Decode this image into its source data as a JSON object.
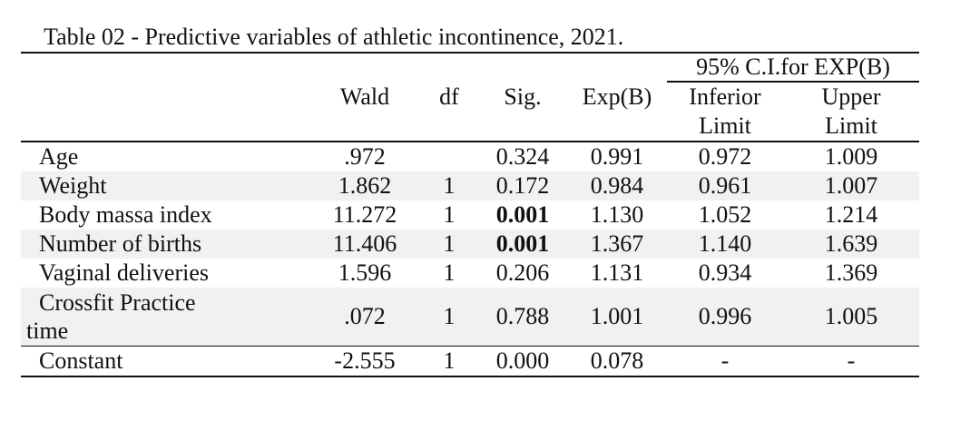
{
  "caption": "Table 02 - Predictive variables of athletic incontinence, 2021.",
  "header": {
    "ci_group": "95% C.I.for EXP(B)",
    "wald": "Wald",
    "df": "df",
    "sig": "Sig.",
    "exp": "Exp(B)",
    "inferior_line1": "Inferior",
    "inferior_line2": "Limit",
    "upper_line1": "Upper",
    "upper_line2": "Limit"
  },
  "rows": [
    {
      "label": "Age",
      "wald": ".972",
      "df": "",
      "sig": "0.324",
      "exp": "0.991",
      "inferior": "0.972",
      "upper": "1.009"
    },
    {
      "label": "Weight",
      "wald": "1.862",
      "df": "1",
      "sig": "0.172",
      "exp": "0.984",
      "inferior": "0.961",
      "upper": "1.007"
    },
    {
      "label": "Body massa index",
      "wald": "11.272",
      "df": "1",
      "sig": "0.001",
      "exp": "1.130",
      "inferior": "1.052",
      "upper": "1.214"
    },
    {
      "label": "Number of births",
      "wald": "11.406",
      "df": "1",
      "sig": "0.001",
      "exp": "1.367",
      "inferior": "1.140",
      "upper": "1.639"
    },
    {
      "label": "Vaginal deliveries",
      "wald": "1.596",
      "df": "1",
      "sig": "0.206",
      "exp": "1.131",
      "inferior": "0.934",
      "upper": "1.369"
    },
    {
      "label_line1": "Crossfit Practice",
      "label_line2": "time",
      "wald": ".072",
      "df": "1",
      "sig": "0.788",
      "exp": "1.001",
      "inferior": "0.996",
      "upper": "1.005"
    },
    {
      "label": "Constant",
      "wald": "-2.555",
      "df": "1",
      "sig": "0.000",
      "exp": "0.078",
      "inferior": "-",
      "upper": "-"
    }
  ]
}
